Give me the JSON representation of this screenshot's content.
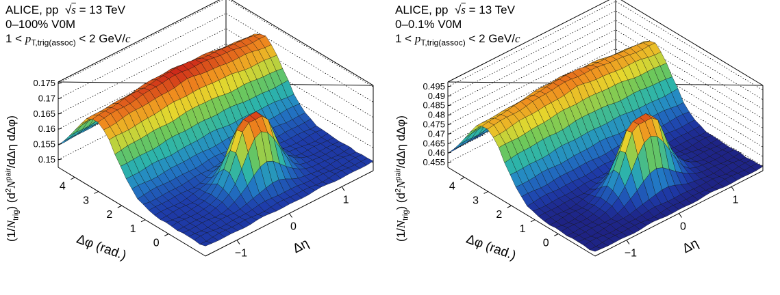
{
  "chart_data": [
    {
      "type": "surface",
      "header": {
        "experiment": "ALICE, pp",
        "energy": "= 13 TeV",
        "centrality": "0–100% V0M",
        "kin_pre": "1 <",
        "kin_sub": "T,trig(assoc)",
        "kin_post": "< 2 GeV/"
      },
      "zlabel_parts": [
        "(1/",
        "N",
        "trig",
        ") (d",
        "2",
        "N",
        "pair",
        "/dΔη dΔφ)"
      ],
      "xlabel": "Δφ (rad.)",
      "ylabel": "Δη",
      "z_ticks": [
        "0.15",
        "0.155",
        "0.16",
        "0.165",
        "0.17",
        "0.175"
      ],
      "phi_ticks": [
        "0",
        "1",
        "2",
        "3",
        "4"
      ],
      "eta_ticks": [
        "−1",
        "0",
        "1"
      ],
      "zlim": [
        0.1475,
        0.1755
      ],
      "xlim": [
        -1.5708,
        4.7124
      ],
      "ylim": [
        -1.6,
        1.6
      ],
      "near_side_peak": 0.1735,
      "away_side_ridge": 0.1735,
      "baseline": 0.1505
    },
    {
      "type": "surface",
      "header": {
        "experiment": "ALICE, pp",
        "energy": "= 13 TeV",
        "centrality": "0–0.1% V0M",
        "kin_pre": "1 <",
        "kin_sub": "T,trig(assoc)",
        "kin_post": "< 2 GeV/"
      },
      "zlabel_parts": [
        "(1/",
        "N",
        "trig",
        ") (d",
        "2",
        "N",
        "pair",
        "/dΔη dΔφ)"
      ],
      "xlabel": "Δφ (rad.)",
      "ylabel": "Δη",
      "z_ticks": [
        "0.455",
        "0.46",
        "0.465",
        "0.47",
        "0.475",
        "0.48",
        "0.485",
        "0.49",
        "0.495"
      ],
      "phi_ticks": [
        "0",
        "1",
        "2",
        "3",
        "4"
      ],
      "eta_ticks": [
        "−1",
        "0",
        "1"
      ],
      "zlim": [
        0.4525,
        0.4975
      ],
      "xlim": [
        -1.5708,
        4.7124
      ],
      "ylim": [
        -1.6,
        1.6
      ],
      "near_side_peak": 0.4935,
      "away_side_ridge": 0.4905,
      "baseline": 0.4545
    }
  ]
}
